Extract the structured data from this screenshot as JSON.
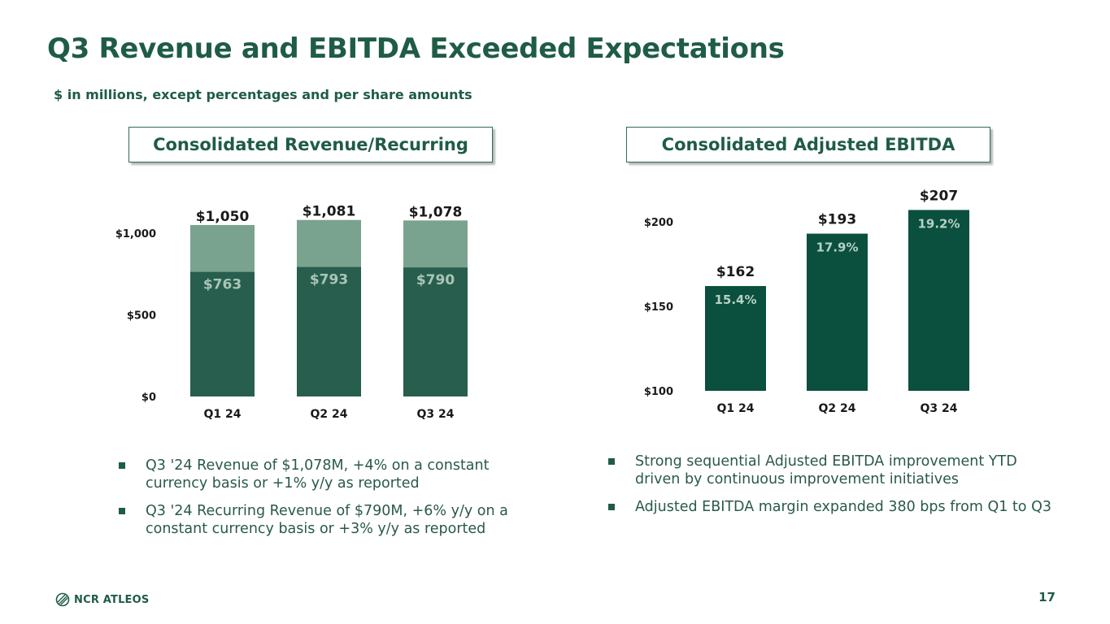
{
  "slide": {
    "title": "Q3 Revenue and EBITDA Exceeded Expectations",
    "subtitle": "$ in millions, except percentages and per share amounts",
    "page_number": "17",
    "logo_text": "NCR ATLEOS"
  },
  "colors": {
    "brand_green": "#1f5c45",
    "revenue_total": "#7aa38f",
    "revenue_recurring": "#285e4d",
    "ebitda_bar": "#0b4f3e",
    "axis_text": "#1a1a1a"
  },
  "revenue_section": {
    "box_title": "Consolidated Revenue/Recurring",
    "bullets": [
      "Q3 '24 Revenue of $1,078M, +4% on a constant currency basis or +1% y/y as reported",
      "Q3 '24 Recurring Revenue of $790M, +6% y/y on a constant currency basis or +3% y/y as reported"
    ]
  },
  "ebitda_section": {
    "box_title": "Consolidated Adjusted EBITDA",
    "bullets": [
      "Strong sequential Adjusted EBITDA improvement YTD driven by continuous improvement initiatives",
      "Adjusted EBITDA margin expanded 380 bps from Q1 to Q3"
    ]
  },
  "chart_data": [
    {
      "type": "bar",
      "stacked_overlay": true,
      "categories": [
        "Q1 24",
        "Q2 24",
        "Q3 24"
      ],
      "series": [
        {
          "name": "Revenue",
          "values": [
            1050,
            1081,
            1078
          ],
          "labels": [
            "$1,050",
            "$1,081",
            "$1,078"
          ]
        },
        {
          "name": "Recurring",
          "values": [
            763,
            793,
            790
          ],
          "labels": [
            "$763",
            "$793",
            "$790"
          ]
        }
      ],
      "ylim": [
        0,
        1000
      ],
      "yticks": [
        0,
        500,
        1000
      ],
      "ytick_labels": [
        "$0",
        "$500",
        "$1,000"
      ],
      "grid": false
    },
    {
      "type": "bar",
      "categories": [
        "Q1 24",
        "Q2 24",
        "Q3 24"
      ],
      "values": [
        162,
        193,
        207
      ],
      "value_labels": [
        "$162",
        "$193",
        "$207"
      ],
      "margin_labels": [
        "15.4%",
        "17.9%",
        "19.2%"
      ],
      "ylim": [
        100,
        200
      ],
      "yticks": [
        100,
        150,
        200
      ],
      "ytick_labels": [
        "$100",
        "$150",
        "$200"
      ],
      "grid": false
    }
  ]
}
